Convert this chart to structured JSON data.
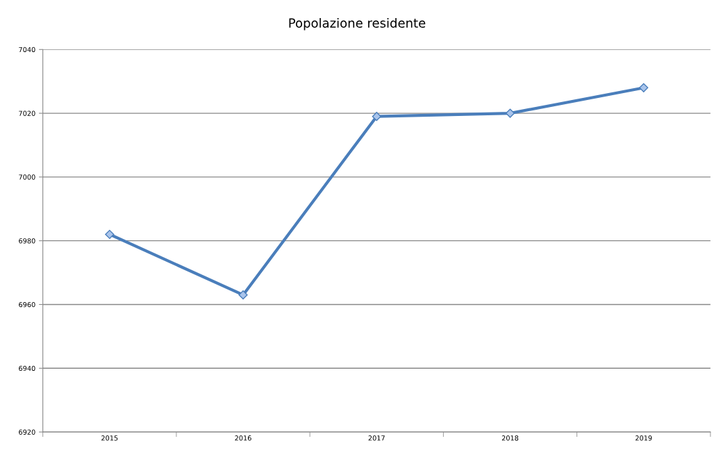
{
  "chart_data": {
    "type": "line",
    "title": "Popolazione residente",
    "categories": [
      "2015",
      "2016",
      "2017",
      "2018",
      "2019"
    ],
    "series": [
      {
        "color": "#4a7ebb",
        "values": [
          6982,
          6963,
          7019,
          7020,
          7028
        ]
      }
    ],
    "ylim": [
      6920,
      7040
    ],
    "yticks": [
      6920,
      6940,
      6960,
      6980,
      7000,
      7020,
      7040
    ],
    "grid": "y",
    "legend": false,
    "marker": "diamond",
    "line_style": "solid"
  }
}
